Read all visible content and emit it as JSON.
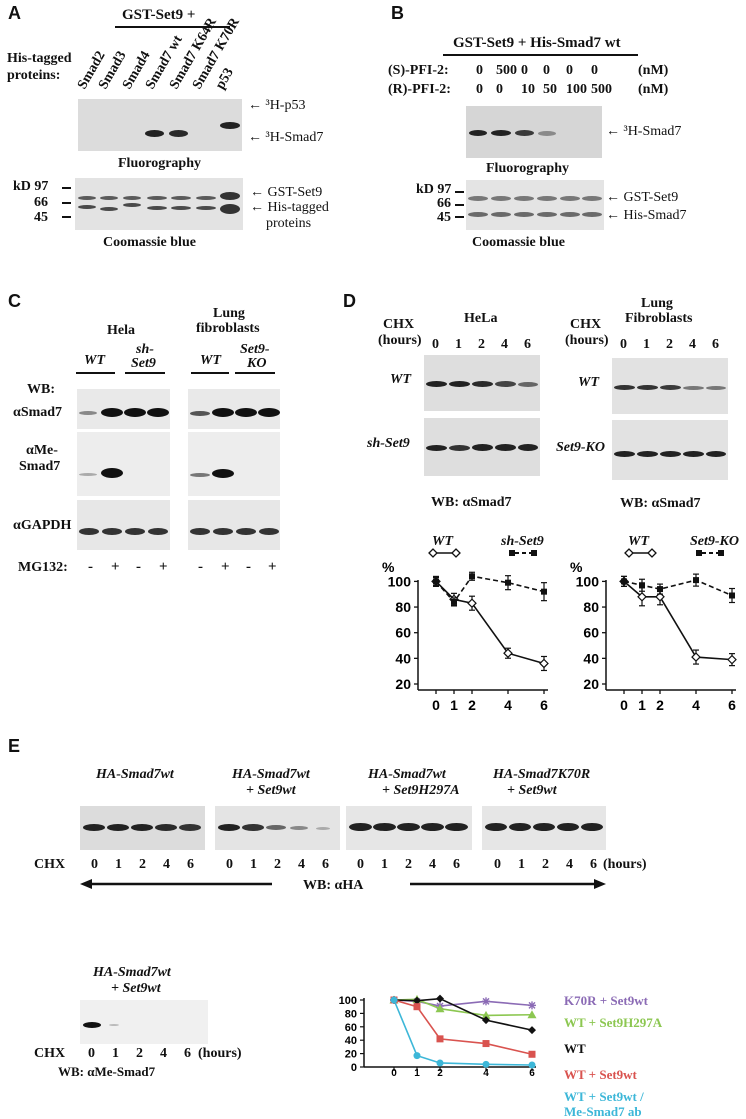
{
  "panelA": {
    "label": "A",
    "header": "GST-Set9 +",
    "rowlabel1": "His-tagged",
    "rowlabel2": "proteins:",
    "lanes": [
      "Smad2",
      "Smad3",
      "Smad4",
      "Smad7 wt",
      "Smad7 K64R",
      "Smad7 K70R",
      "p53"
    ],
    "arrow_p53": "³H-p53",
    "arrow_smad7": "³H-Smad7",
    "fluoro": "Fluorography",
    "kd": "kD 97",
    "m66": "66",
    "m45": "45",
    "arrow_gst": "GST-Set9",
    "arrow_his1": "His-tagged",
    "arrow_his2": "proteins",
    "coomassie": "Coomassie blue"
  },
  "panelB": {
    "label": "B",
    "header": "GST-Set9 + His-Smad7 wt",
    "s_label": "(S)-PFI-2:",
    "r_label": "(R)-PFI-2:",
    "s_vals": [
      "0",
      "500",
      "0",
      "0",
      "0",
      "0"
    ],
    "r_vals": [
      "0",
      "0",
      "10",
      "50",
      "100",
      "500"
    ],
    "unit": "(nM)",
    "arrow_smad7": "³H-Smad7",
    "fluoro": "Fluorography",
    "kd": "kD 97",
    "m66": "66",
    "m45": "45",
    "arrow_gst": "GST-Set9",
    "arrow_his": "His-Smad7",
    "coomassie": "Coomassie blue"
  },
  "panelC": {
    "label": "C",
    "hela": "Hela",
    "lung1": "Lung",
    "lung2": "fibroblasts",
    "wt": "WT",
    "sh1": "sh-",
    "sh2": "Set9",
    "ko1": "Set9-",
    "ko2": "KO",
    "wb": "WB:",
    "asmad7": "αSmad7",
    "ame1": "αMe-",
    "ame2": "Smad7",
    "agapdh": "αGAPDH",
    "mg132": "MG132:",
    "signs": [
      "-",
      "+",
      "-",
      "+"
    ]
  },
  "panelD": {
    "label": "D",
    "chx": "CHX",
    "hours": "(hours)",
    "hela": "HeLa",
    "lung1": "Lung",
    "lung2": "Fibroblasts",
    "times": [
      "0",
      "1",
      "2",
      "4",
      "6"
    ],
    "wt": "WT",
    "sh": "sh-Set9",
    "ko": "Set9-KO",
    "wb": "WB: αSmad7",
    "pct": "%",
    "xlabel": "CHX (hours)"
  },
  "panelE": {
    "label": "E",
    "titles": [
      [
        "HA-Smad7wt",
        ""
      ],
      [
        "HA-Smad7wt",
        "+ Set9wt"
      ],
      [
        "HA-Smad7wt",
        "+ Set9H297A"
      ],
      [
        "HA-Smad7K70R",
        "+ Set9wt"
      ]
    ],
    "chx": "CHX",
    "times": [
      "0",
      "1",
      "2",
      "4",
      "6"
    ],
    "hours": "(hours)",
    "wb_ha": "WB: αHA",
    "me_title1": "HA-Smad7wt",
    "me_title2": "+ Set9wt",
    "wb_me": "WB: αMe-Smad7"
  },
  "chart_data": [
    {
      "type": "line",
      "panel": "D-HeLa",
      "x": [
        0,
        1,
        2,
        4,
        6
      ],
      "xlabel": "CHX (hours)",
      "ylabel": "%",
      "ylim": [
        20,
        100
      ],
      "yticks": [
        20,
        40,
        60,
        80,
        100
      ],
      "series": [
        {
          "name": "WT",
          "values": [
            100,
            86,
            83,
            44,
            36
          ]
        },
        {
          "name": "sh-Set9",
          "values": [
            100,
            84,
            104,
            99,
            92
          ]
        }
      ]
    },
    {
      "type": "line",
      "panel": "D-Lung Fibroblasts",
      "x": [
        0,
        1,
        2,
        4,
        6
      ],
      "xlabel": "CHX (hours)",
      "ylabel": "%",
      "ylim": [
        20,
        100
      ],
      "yticks": [
        20,
        40,
        60,
        80,
        100
      ],
      "series": [
        {
          "name": "WT",
          "values": [
            100,
            88,
            88,
            41,
            39
          ]
        },
        {
          "name": "Set9-KO",
          "values": [
            100,
            97,
            94,
            101,
            89
          ]
        }
      ]
    },
    {
      "type": "line",
      "panel": "E",
      "x": [
        0,
        1,
        2,
        4,
        6
      ],
      "ylim": [
        0,
        100
      ],
      "yticks": [
        0,
        20,
        40,
        60,
        80,
        100
      ],
      "series": [
        {
          "name": "K70R + Set9wt",
          "color": "#8b6bb5",
          "values": [
            100,
            98,
            91,
            98,
            92
          ]
        },
        {
          "name": "WT + Set9H297A",
          "color": "#8cc751",
          "values": [
            100,
            101,
            87,
            77,
            78
          ]
        },
        {
          "name": "WT",
          "color": "#111111",
          "values": [
            100,
            99,
            102,
            70,
            55
          ]
        },
        {
          "name": "WT + Set9wt",
          "color": "#d9534f",
          "values": [
            100,
            90,
            42,
            35,
            19
          ]
        },
        {
          "name": "WT + Set9wt / Me-Smad7 ab",
          "color": "#3db7d8",
          "values": [
            100,
            17,
            6,
            4,
            3
          ]
        }
      ]
    }
  ]
}
